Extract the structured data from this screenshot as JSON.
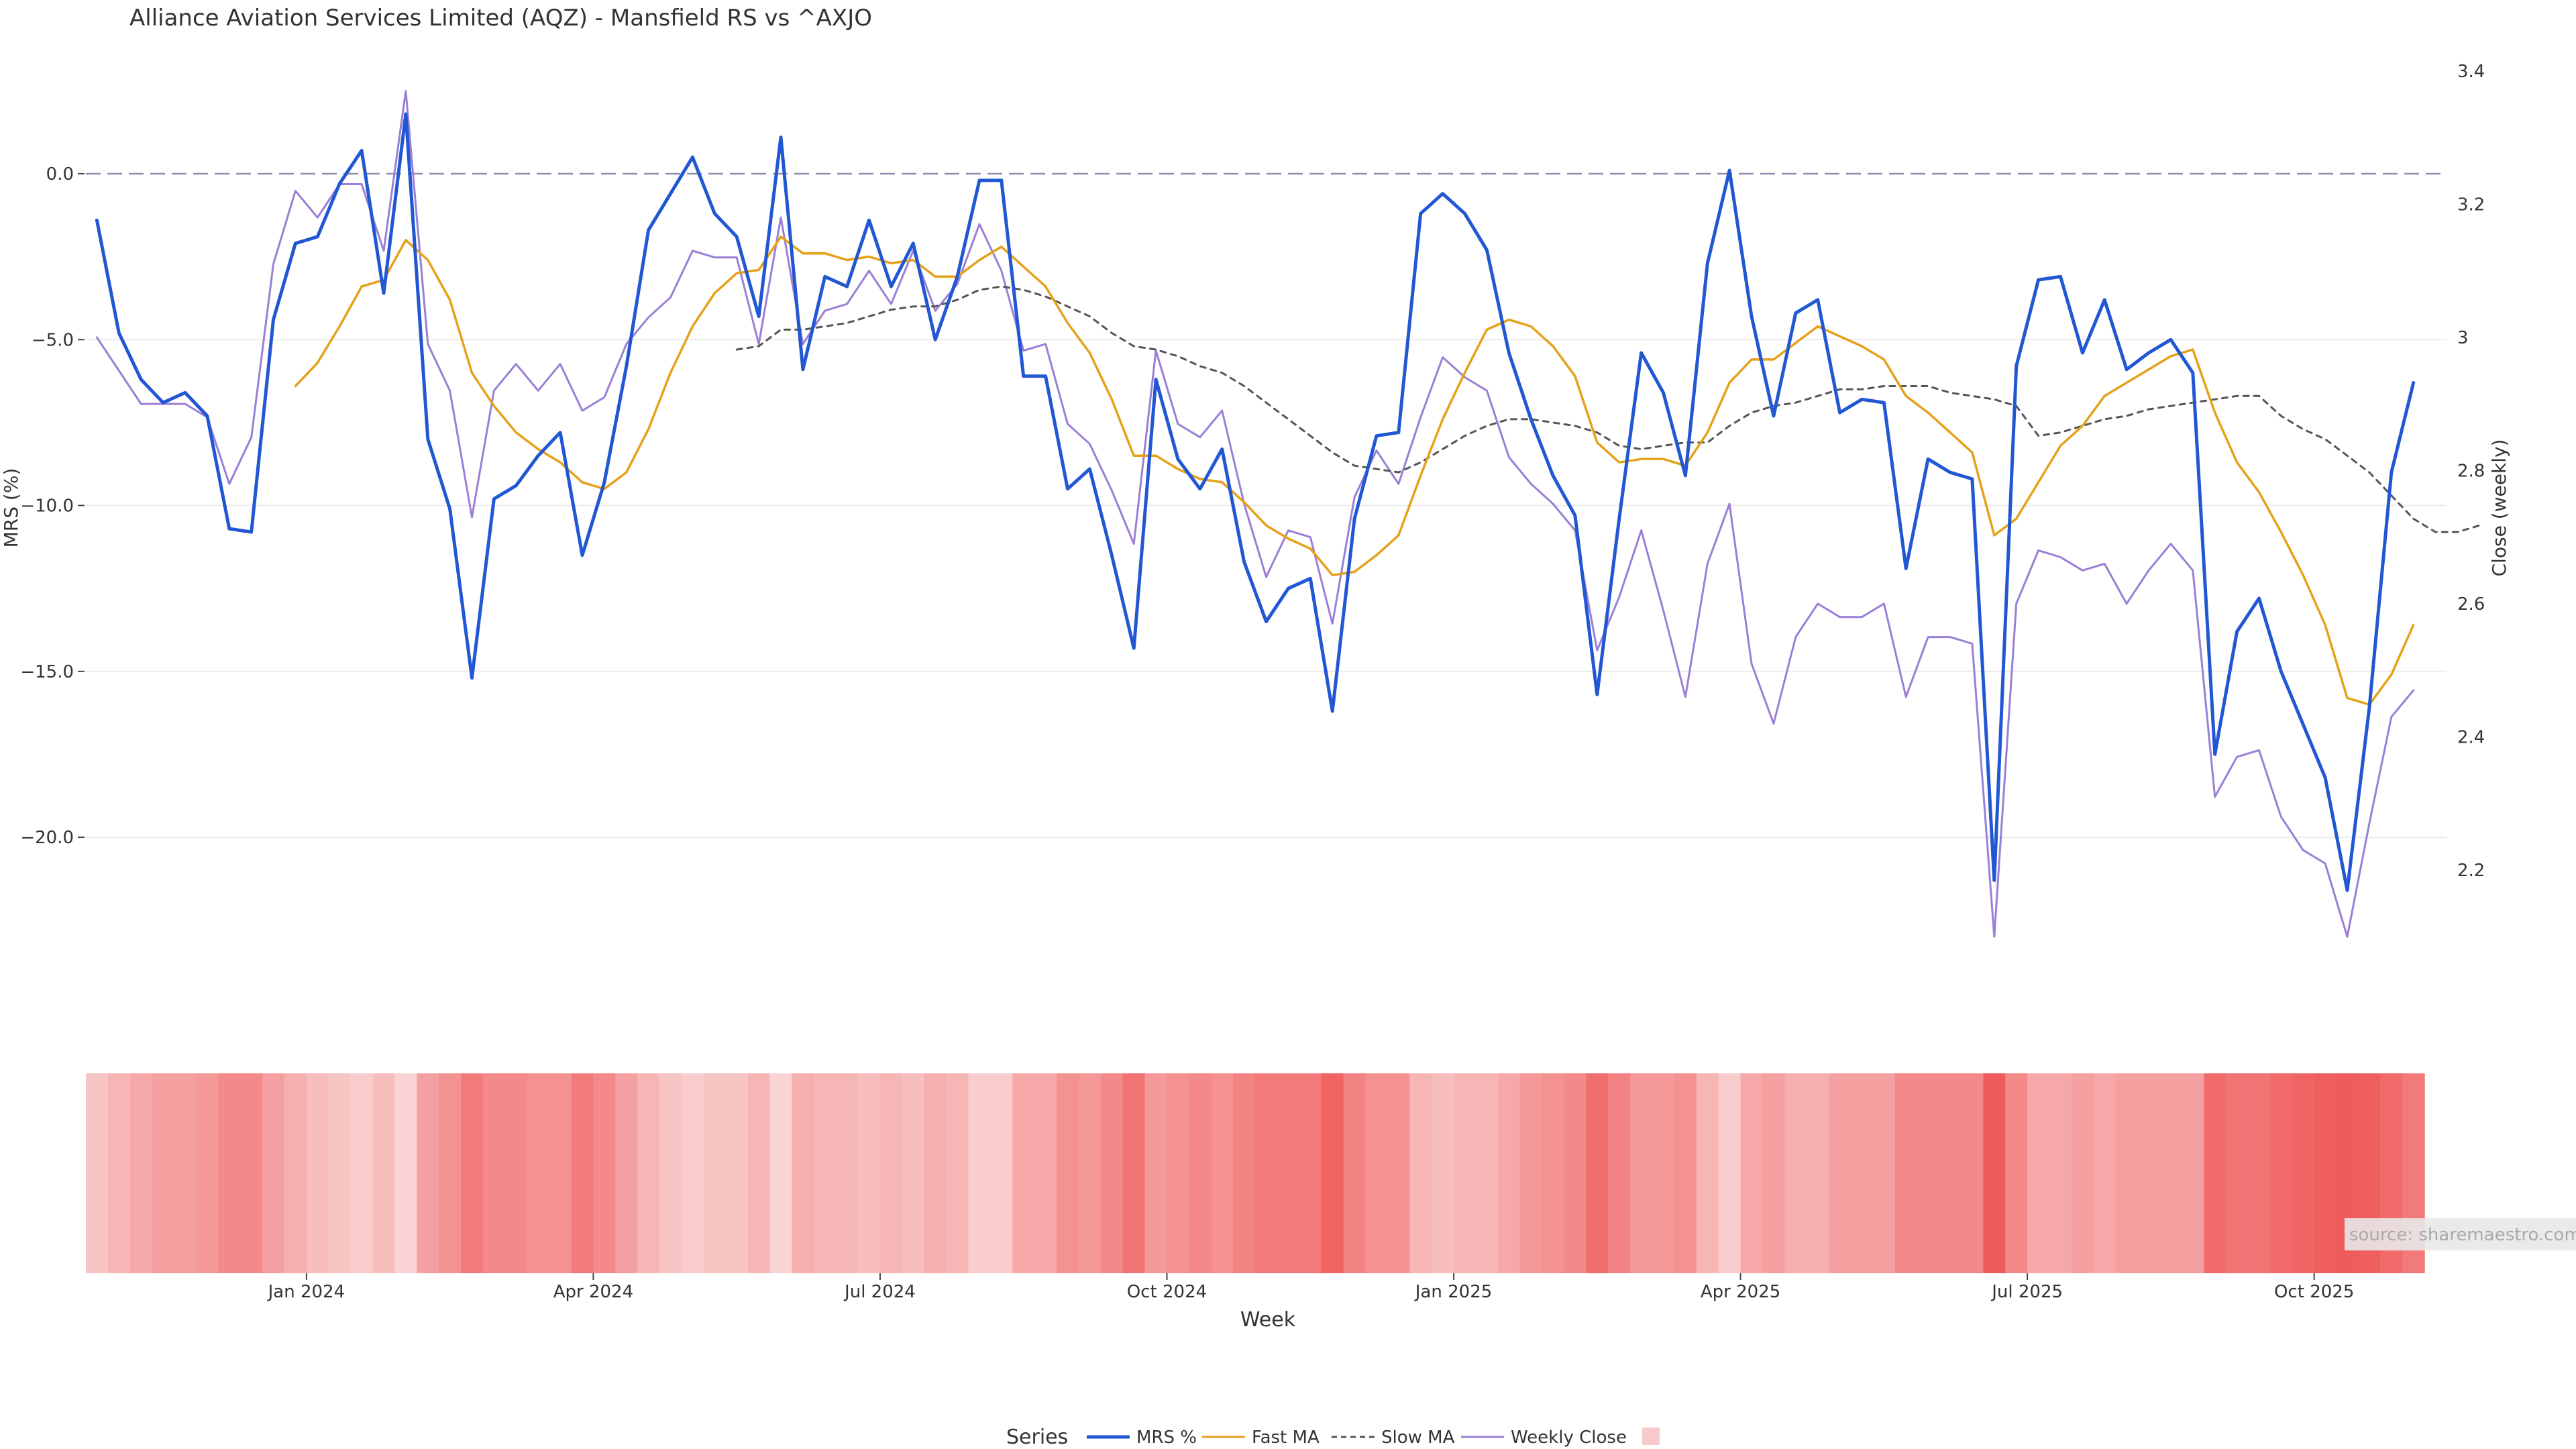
{
  "colors": {
    "mrs": "#2257d4",
    "fast_ma": "#e6a11b",
    "slow_ma": "#555555",
    "weekly_close": "#9b7fd6",
    "zero_line": "#8c8fb0",
    "grid": "#ececec",
    "heat_low": "#fbe3e3",
    "heat_high": "#ee4d4d"
  },
  "chart_data": {
    "type": "line",
    "title": "Alliance Aviation Services Limited (AQZ) - Mansfield RS vs ^AXJO",
    "xlabel": "Week",
    "ylabel_left": "MRS (%)",
    "ylabel_right": "Close (weekly)",
    "ylim_left": [
      -23.8,
      3.7
    ],
    "ylim_right": [
      2.06,
      3.43
    ],
    "left_ticks": [
      0,
      -5,
      -10,
      -15,
      -20
    ],
    "left_tick_labels": [
      "0.0",
      "−5.0",
      "−10.0",
      "−15.0",
      "−20.0"
    ],
    "right_ticks": [
      2.2,
      2.4,
      2.6,
      2.8,
      3,
      3.2,
      3.4
    ],
    "right_tick_labels": [
      "2.2",
      "2.4",
      "2.6",
      "2.8",
      "3",
      "3.2",
      "3.4"
    ],
    "x_range": [
      -0.5,
      106.5
    ],
    "x_ticks": [
      9.5,
      22.5,
      35.5,
      48.5,
      61.5,
      74.5,
      87.5,
      100.5
    ],
    "x_tick_labels": [
      "Jan 2024",
      "Apr 2024",
      "Jul 2024",
      "Oct 2024",
      "Jan 2025",
      "Apr 2025",
      "Jul 2025",
      "Oct 2025"
    ],
    "reference_line": 0,
    "legend_title": "Series",
    "legend_position": "bottom-center",
    "source_note": "source: sharemaestro.com",
    "series": [
      {
        "name": "MRS %",
        "axis": "left",
        "style": "solid",
        "values": [
          -1.4,
          -4.8,
          -6.2,
          -6.9,
          -6.6,
          -7.3,
          -10.7,
          -10.8,
          -4.4,
          -2.1,
          -1.9,
          -0.3,
          0.7,
          -3.6,
          1.8,
          -8.0,
          -10.1,
          -15.2,
          -9.8,
          -9.4,
          -8.5,
          -7.8,
          -11.5,
          -9.3,
          -5.8,
          -1.7,
          -0.6,
          0.5,
          -1.2,
          -1.9,
          -4.3,
          1.1,
          -5.9,
          -3.1,
          -3.4,
          -1.4,
          -3.4,
          -2.1,
          -5.0,
          -3.1,
          -0.2,
          -0.2,
          -6.1,
          -6.1,
          -9.5,
          -8.9,
          -11.5,
          -14.3,
          -6.2,
          -8.6,
          -9.5,
          -8.3,
          -11.7,
          -13.5,
          -12.5,
          -12.2,
          -16.2,
          -10.4,
          -7.9,
          -7.8,
          -1.2,
          -0.6,
          -1.2,
          -2.3,
          -5.4,
          -7.4,
          -9.1,
          -10.3,
          -15.7,
          -10.4,
          -5.4,
          -6.6,
          -9.1,
          -2.7,
          0.1,
          -4.3,
          -7.3,
          -4.2,
          -3.8,
          -7.2,
          -6.8,
          -6.9,
          -11.9,
          -8.6,
          -9.0,
          -9.2,
          -21.3,
          -5.8,
          -3.2,
          -3.1,
          -5.4,
          -3.8,
          -5.9,
          -5.4,
          -5.0,
          -6.0,
          -17.5,
          -13.8,
          -12.8,
          -15.0,
          -16.6,
          -18.2,
          -21.6,
          -16.1,
          -9.0,
          -6.3
        ]
      },
      {
        "name": "Fast MA",
        "axis": "left",
        "style": "solid",
        "start": 9,
        "values": [
          -6.4,
          -5.7,
          -4.6,
          -3.4,
          -3.2,
          -2.0,
          -2.6,
          -3.8,
          -6.0,
          -7.0,
          -7.8,
          -8.3,
          -8.7,
          -9.3,
          -9.5,
          -9.0,
          -7.7,
          -6.0,
          -4.6,
          -3.6,
          -3.0,
          -2.9,
          -1.9,
          -2.4,
          -2.4,
          -2.6,
          -2.5,
          -2.7,
          -2.6,
          -3.1,
          -3.1,
          -2.6,
          -2.2,
          -2.8,
          -3.4,
          -4.5,
          -5.4,
          -6.8,
          -8.5,
          -8.5,
          -8.9,
          -9.2,
          -9.3,
          -9.9,
          -10.6,
          -11.0,
          -11.3,
          -12.1,
          -12.0,
          -11.5,
          -10.9,
          -9.1,
          -7.4,
          -6.0,
          -4.7,
          -4.4,
          -4.6,
          -5.2,
          -6.1,
          -8.1,
          -8.7,
          -8.6,
          -8.6,
          -8.8,
          -7.8,
          -6.3,
          -5.6,
          -5.6,
          -5.1,
          -4.6,
          -4.9,
          -5.2,
          -5.6,
          -6.7,
          -7.2,
          -7.8,
          -8.4,
          -10.9,
          -10.4,
          -9.3,
          -8.2,
          -7.6,
          -6.7,
          -6.3,
          -5.9,
          -5.5,
          -5.3,
          -7.2,
          -8.7,
          -9.6,
          -10.8,
          -12.1,
          -13.6,
          -15.8,
          -16.0,
          -15.1,
          -13.6
        ]
      },
      {
        "name": "Slow MA",
        "axis": "left",
        "style": "dashed",
        "start": 29,
        "values": [
          -5.3,
          -5.2,
          -4.7,
          -4.7,
          -4.6,
          -4.5,
          -4.3,
          -4.1,
          -4.0,
          -4.0,
          -3.8,
          -3.5,
          -3.4,
          -3.5,
          -3.7,
          -4.0,
          -4.3,
          -4.8,
          -5.2,
          -5.3,
          -5.5,
          -5.8,
          -6.0,
          -6.4,
          -6.9,
          -7.4,
          -7.9,
          -8.4,
          -8.8,
          -8.9,
          -9.0,
          -8.7,
          -8.3,
          -7.9,
          -7.6,
          -7.4,
          -7.4,
          -7.5,
          -7.6,
          -7.8,
          -8.2,
          -8.3,
          -8.2,
          -8.1,
          -8.1,
          -7.6,
          -7.2,
          -7.0,
          -6.9,
          -6.7,
          -6.5,
          -6.5,
          -6.4,
          -6.4,
          -6.4,
          -6.6,
          -6.7,
          -6.8,
          -7.0,
          -7.9,
          -7.8,
          -7.6,
          -7.4,
          -7.3,
          -7.1,
          -7.0,
          -6.9,
          -6.8,
          -6.7,
          -6.7,
          -7.3,
          -7.7,
          -8.0,
          -8.5,
          -9.0,
          -9.7,
          -10.4,
          -10.8,
          -10.8,
          -10.6
        ]
      },
      {
        "name": "Weekly Close",
        "axis": "right",
        "style": "solid",
        "values": [
          3.0,
          2.95,
          2.9,
          2.9,
          2.9,
          2.88,
          2.78,
          2.85,
          3.11,
          3.22,
          3.18,
          3.23,
          3.23,
          3.13,
          3.37,
          2.99,
          2.92,
          2.73,
          2.92,
          2.96,
          2.92,
          2.96,
          2.89,
          2.91,
          2.99,
          3.03,
          3.06,
          3.13,
          3.12,
          3.12,
          2.99,
          3.18,
          2.99,
          3.04,
          3.05,
          3.1,
          3.05,
          3.13,
          3.04,
          3.08,
          3.17,
          3.1,
          2.98,
          2.99,
          2.87,
          2.84,
          2.77,
          2.69,
          2.98,
          2.87,
          2.85,
          2.89,
          2.75,
          2.64,
          2.71,
          2.7,
          2.57,
          2.76,
          2.83,
          2.78,
          2.88,
          2.97,
          2.94,
          2.92,
          2.82,
          2.78,
          2.75,
          2.71,
          2.53,
          2.61,
          2.71,
          2.59,
          2.46,
          2.66,
          2.75,
          2.51,
          2.42,
          2.55,
          2.6,
          2.58,
          2.58,
          2.6,
          2.46,
          2.55,
          2.55,
          2.54,
          2.1,
          2.6,
          2.68,
          2.67,
          2.65,
          2.66,
          2.6,
          2.65,
          2.69,
          2.65,
          2.31,
          2.37,
          2.38,
          2.28,
          2.23,
          2.21,
          2.1,
          2.27,
          2.43,
          2.47
        ]
      }
    ],
    "heatmap_strip": {
      "description": "per-week relative strength intensity strip (0 = light, 1 = dark red)",
      "values": [
        0.2,
        0.3,
        0.4,
        0.45,
        0.45,
        0.5,
        0.6,
        0.6,
        0.45,
        0.35,
        0.25,
        0.2,
        0.15,
        0.25,
        0.1,
        0.45,
        0.55,
        0.7,
        0.6,
        0.6,
        0.55,
        0.55,
        0.7,
        0.6,
        0.45,
        0.3,
        0.2,
        0.15,
        0.2,
        0.2,
        0.3,
        0.1,
        0.35,
        0.3,
        0.3,
        0.25,
        0.3,
        0.25,
        0.35,
        0.3,
        0.15,
        0.15,
        0.4,
        0.4,
        0.55,
        0.5,
        0.6,
        0.75,
        0.5,
        0.55,
        0.6,
        0.55,
        0.65,
        0.7,
        0.7,
        0.7,
        0.85,
        0.65,
        0.55,
        0.55,
        0.3,
        0.25,
        0.3,
        0.3,
        0.4,
        0.5,
        0.55,
        0.6,
        0.78,
        0.65,
        0.5,
        0.5,
        0.55,
        0.3,
        0.15,
        0.4,
        0.45,
        0.35,
        0.35,
        0.45,
        0.45,
        0.45,
        0.6,
        0.6,
        0.6,
        0.6,
        0.9,
        0.6,
        0.4,
        0.4,
        0.45,
        0.4,
        0.45,
        0.45,
        0.45,
        0.45,
        0.8,
        0.75,
        0.75,
        0.8,
        0.85,
        0.88,
        0.9,
        0.88,
        0.8,
        0.7
      ]
    }
  }
}
